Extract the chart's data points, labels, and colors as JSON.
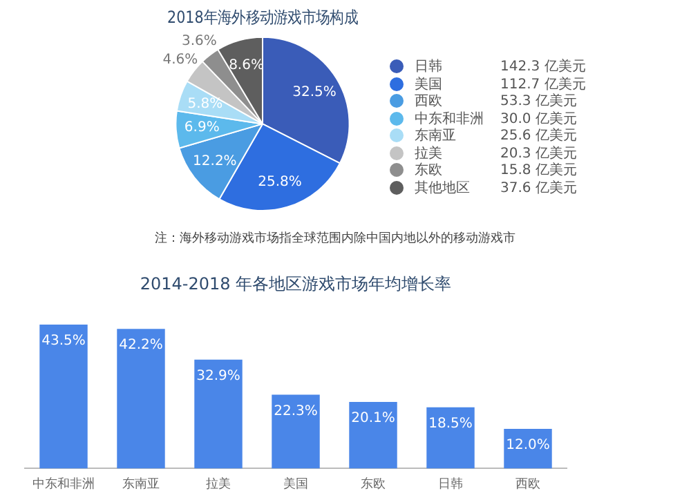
{
  "chart_data": [
    {
      "type": "pie",
      "title": "2018年海外移动游戏市场构成",
      "legend": "right",
      "categories": [
        "日韩",
        "美国",
        "西欧",
        "中东和非洲",
        "东南亚",
        "拉美",
        "东欧",
        "其他地区"
      ],
      "values": [
        32.5,
        25.8,
        12.2,
        6.9,
        5.8,
        4.6,
        3.6,
        8.6
      ],
      "value_labels": [
        "32.5%",
        "25.8%",
        "12.2%",
        "6.9%",
        "5.8%",
        "4.6%",
        "3.6%",
        "8.6%"
      ],
      "colors": [
        "#3a5cb8",
        "#2e6ee0",
        "#4a9ce2",
        "#5cb9ec",
        "#a9ddf6",
        "#c4c4c4",
        "#8e8e8e",
        "#5e5e5e"
      ],
      "annotations": [
        "142.3 亿美元",
        "112.7 亿美元",
        "53.3 亿美元",
        "30.0 亿美元",
        "25.6 亿美元",
        "20.3 亿美元",
        "15.8 亿美元",
        "37.6 亿美元",
        "注：海外移动游戏市场指全球范围内除中国内地以外的移动游戏市"
      ]
    },
    {
      "type": "bar",
      "title": "2014-2018 年各地区游戏市场年均增长率",
      "tick_labels": "x",
      "grid": false,
      "legend": false,
      "categories": [
        "中东和非洲",
        "东南亚",
        "拉美",
        "美国",
        "东欧",
        "日韩",
        "西欧"
      ],
      "values": [
        43.5,
        42.2,
        32.9,
        22.3,
        20.1,
        18.5,
        12.0
      ],
      "value_labels": [
        "43.5%",
        "42.2%",
        "32.9%",
        "22.3%",
        "20.1%",
        "18.5%",
        "12.0%"
      ],
      "color": "#4a86e8"
    }
  ]
}
